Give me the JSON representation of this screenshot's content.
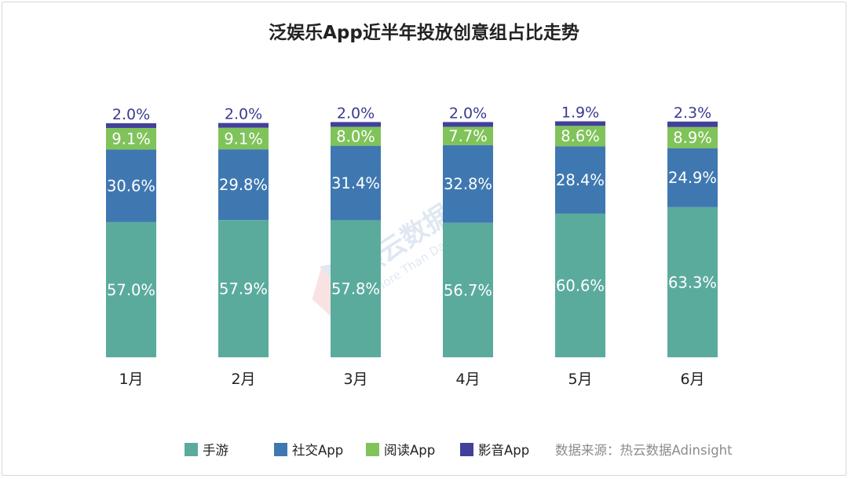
{
  "chart_data": {
    "type": "bar",
    "stacked": true,
    "title": "泛娱乐App近半年投放创意组占比走势",
    "categories": [
      "1月",
      "2月",
      "3月",
      "4月",
      "5月",
      "6月"
    ],
    "ylim": [
      0,
      100
    ],
    "grid": false,
    "legend_position": "bottom",
    "series": [
      {
        "name": "手游",
        "color": "#5bab9d",
        "label_color": "#ffffff",
        "values": [
          57.0,
          57.9,
          57.8,
          56.7,
          60.6,
          63.3
        ],
        "labels": [
          "57.0%",
          "57.9%",
          "57.8%",
          "56.7%",
          "60.6%",
          "63.3%"
        ]
      },
      {
        "name": "社交App",
        "color": "#3f78b1",
        "label_color": "#ffffff",
        "values": [
          30.6,
          29.8,
          31.4,
          32.8,
          28.4,
          24.9
        ],
        "labels": [
          "30.6%",
          "29.8%",
          "31.4%",
          "32.8%",
          "28.4%",
          "24.9%"
        ]
      },
      {
        "name": "阅读App",
        "color": "#80c35a",
        "label_color": "#ffffff",
        "values": [
          9.1,
          9.1,
          8.0,
          7.7,
          8.6,
          8.9
        ],
        "labels": [
          "9.1%",
          "9.1%",
          "8.0%",
          "7.7%",
          "8.6%",
          "8.9%"
        ]
      },
      {
        "name": "影音App",
        "color": "#42409a",
        "label_color": "#3b3a8f",
        "values": [
          2.0,
          2.0,
          2.0,
          2.0,
          1.9,
          2.3
        ],
        "labels": [
          "2.0%",
          "2.0%",
          "2.0%",
          "2.0%",
          "1.9%",
          "2.3%"
        ]
      }
    ],
    "source_note": "数据来源：热云数据Adinsight"
  },
  "watermark": {
    "text": "热云数据",
    "subtext": "More Than Data"
  }
}
